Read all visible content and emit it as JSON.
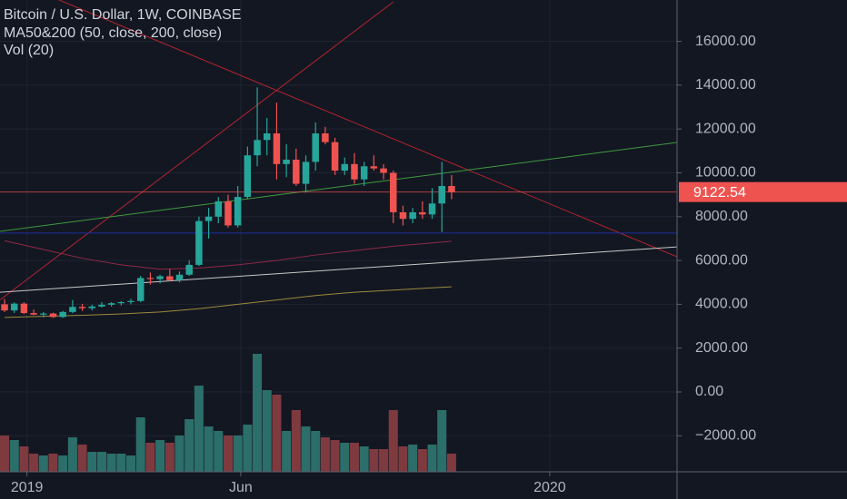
{
  "chart_data": {
    "type": "candlestick",
    "title": "Bitcoin / U.S. Dollar, 1W, COINBASE",
    "subtitle": "MA50&200 (50, close, 200, close)",
    "volume_label": "Vol (20)",
    "x": [
      0,
      1,
      2,
      3,
      4,
      5,
      6,
      7,
      8,
      9,
      10,
      11,
      12,
      13,
      14,
      15,
      16,
      17,
      18,
      19,
      20,
      21,
      22,
      23,
      24,
      25,
      26,
      27,
      28,
      29,
      30,
      31,
      32,
      33,
      34,
      35,
      36,
      37,
      38,
      39,
      40,
      41,
      42,
      43,
      44,
      45,
      46
    ],
    "open": [
      4000,
      3720,
      4030,
      3600,
      3530,
      3580,
      3420,
      3650,
      3880,
      3820,
      3900,
      3980,
      4050,
      4100,
      4150,
      5200,
      5150,
      5280,
      5100,
      5350,
      5800,
      7800,
      8000,
      8700,
      7600,
      8900,
      10800,
      11500,
      11800,
      10400,
      10600,
      9500,
      10500,
      11800,
      11400,
      10100,
      10400,
      9700,
      10300,
      10200,
      10000,
      8200,
      7900,
      8200,
      8100,
      8600,
      9400
    ],
    "high": [
      4240,
      4090,
      4100,
      3760,
      3650,
      3620,
      3700,
      4200,
      4020,
      3980,
      4100,
      4100,
      4150,
      4250,
      5300,
      5450,
      5350,
      5600,
      5500,
      6000,
      8000,
      8400,
      8900,
      9000,
      9400,
      11200,
      13900,
      12500,
      13200,
      11300,
      11100,
      10800,
      12300,
      12100,
      11600,
      10700,
      10900,
      10500,
      10800,
      10400,
      10100,
      8500,
      8400,
      8700,
      9300,
      10500,
      9900
    ],
    "low": [
      3650,
      3600,
      3550,
      3500,
      3400,
      3380,
      3380,
      3600,
      3700,
      3720,
      3850,
      3900,
      3950,
      4000,
      4100,
      4900,
      4950,
      5050,
      5000,
      5300,
      5750,
      7000,
      7700,
      7500,
      7500,
      8800,
      10300,
      10800,
      9700,
      9800,
      9400,
      9100,
      10100,
      11300,
      9900,
      9900,
      9500,
      9400,
      10100,
      9700,
      7700,
      7600,
      7700,
      7900,
      7900,
      7300,
      8800
    ],
    "close": [
      3720,
      4030,
      3600,
      3530,
      3580,
      3420,
      3650,
      3880,
      3820,
      3900,
      3980,
      4050,
      4100,
      4150,
      5200,
      5150,
      5280,
      5100,
      5350,
      5800,
      7800,
      8000,
      8700,
      7600,
      8900,
      10800,
      11500,
      11800,
      10400,
      10600,
      9500,
      10500,
      11800,
      11400,
      10100,
      10400,
      9700,
      10300,
      10200,
      10000,
      8200,
      7900,
      8200,
      8100,
      8600,
      9400,
      9122.54
    ],
    "volume": [
      40,
      35,
      28,
      20,
      18,
      20,
      18,
      38,
      30,
      22,
      22,
      20,
      20,
      18,
      60,
      32,
      35,
      32,
      40,
      58,
      95,
      50,
      45,
      40,
      40,
      52,
      130,
      90,
      85,
      45,
      68,
      50,
      45,
      38,
      35,
      32,
      32,
      28,
      25,
      25,
      68,
      28,
      30,
      25,
      30,
      68,
      20
    ],
    "volume_ylim": [
      0,
      520
    ],
    "up_color": "#26a69a",
    "down_color": "#ef5350",
    "volume_up_color": "#2b6e6a",
    "volume_down_color": "#7e3a3f",
    "moving_averages": [
      {
        "color": "#8e2a45",
        "x": [
          0,
          4,
          8,
          12,
          16,
          20,
          24,
          28,
          32,
          36,
          40,
          44,
          46
        ],
        "values": [
          6900,
          6500,
          6100,
          5800,
          5600,
          5650,
          5800,
          6000,
          6250,
          6450,
          6650,
          6800,
          6880
        ]
      },
      {
        "color": "#9c8a3c",
        "x": [
          0,
          4,
          8,
          12,
          16,
          20,
          24,
          28,
          32,
          36,
          40,
          44,
          46
        ],
        "values": [
          3400,
          3450,
          3500,
          3560,
          3650,
          3800,
          4000,
          4200,
          4400,
          4550,
          4650,
          4750,
          4800
        ]
      }
    ],
    "drawings": [
      {
        "color": "#b2242e",
        "x": [
          -0.47,
          40
        ],
        "values": [
          4200,
          17800
        ]
      },
      {
        "color": "#b2242e",
        "x": [
          5,
          69.2
        ],
        "values": [
          18000,
          6170
        ]
      },
      {
        "color": "#3f9b3f",
        "x": [
          -0.47,
          69.2
        ],
        "values": [
          7330,
          11385
        ]
      },
      {
        "color": "#c8c8c8",
        "x": [
          -0.47,
          69.2
        ],
        "values": [
          4550,
          6620
        ]
      },
      {
        "color": "#1c2ea0",
        "x": [
          -0.47,
          69.2
        ],
        "values": [
          7250,
          7250
        ]
      }
    ],
    "xlim": [
      -0.47,
      69.2
    ],
    "xticks": [
      {
        "value": 2.3,
        "label": "2019"
      },
      {
        "value": 24.3,
        "label": "Jun"
      },
      {
        "value": 56.1,
        "label": "2020"
      }
    ],
    "ylim": [
      -3644,
      17888
    ],
    "yticks": [
      {
        "value": 16000,
        "label": "16000.00"
      },
      {
        "value": 14000,
        "label": "14000.00"
      },
      {
        "value": 12000,
        "label": "12000.00"
      },
      {
        "value": 10000,
        "label": "10000.00"
      },
      {
        "value": 8000,
        "label": "8000.00"
      },
      {
        "value": 6000,
        "label": "6000.00"
      },
      {
        "value": 4000,
        "label": "4000.00"
      },
      {
        "value": 2000,
        "label": "2000.00"
      },
      {
        "value": 0,
        "label": "0.00"
      },
      {
        "value": -2000,
        "label": "−2000.00"
      }
    ],
    "grid": true,
    "last_price_color": "#ef5350"
  }
}
